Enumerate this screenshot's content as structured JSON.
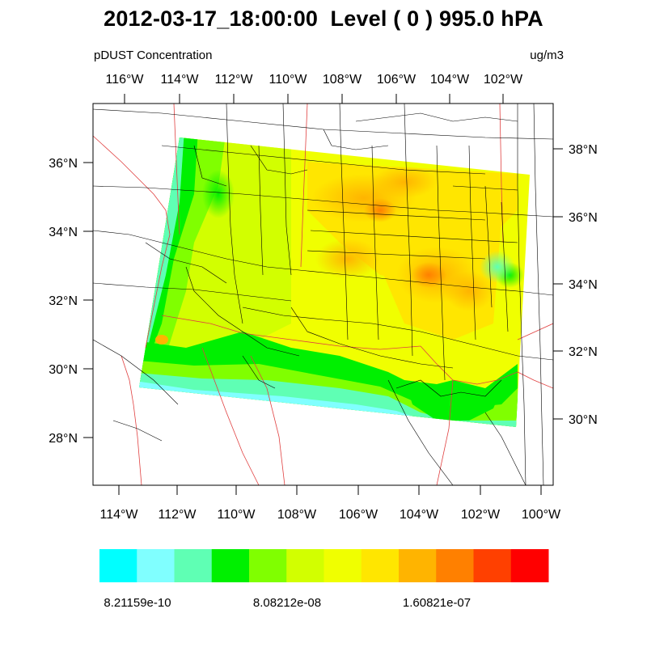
{
  "title": "2012-03-17_18:00:00  Level ( 0 ) 995.0 hPA",
  "subtitle_left": "pDUST Concentration",
  "subtitle_right": "ug/m3",
  "top_axis_labels": [
    "116°W",
    "114°W",
    "112°W",
    "110°W",
    "108°W",
    "106°W",
    "104°W",
    "102°W"
  ],
  "bottom_axis_labels": [
    "114°W",
    "112°W",
    "110°W",
    "108°W",
    "106°W",
    "104°W",
    "102°W",
    "100°W"
  ],
  "left_axis_labels": [
    "36°N",
    "34°N",
    "32°N",
    "30°N",
    "28°N"
  ],
  "right_axis_labels": [
    "38°N",
    "36°N",
    "34°N",
    "32°N",
    "30°N"
  ],
  "colorbar": {
    "colors": [
      "#00ffff",
      "#80ffff",
      "#5fffb4",
      "#00f000",
      "#80ff00",
      "#d2ff00",
      "#f0ff00",
      "#ffe600",
      "#ffb400",
      "#ff8000",
      "#ff4000",
      "#ff0000"
    ],
    "labels": [
      "8.21159e-10",
      "8.08212e-08",
      "1.60821e-07"
    ]
  },
  "colors": {
    "state_lines": "#000000",
    "country_lines": "#e04040",
    "frame": "#000000"
  }
}
